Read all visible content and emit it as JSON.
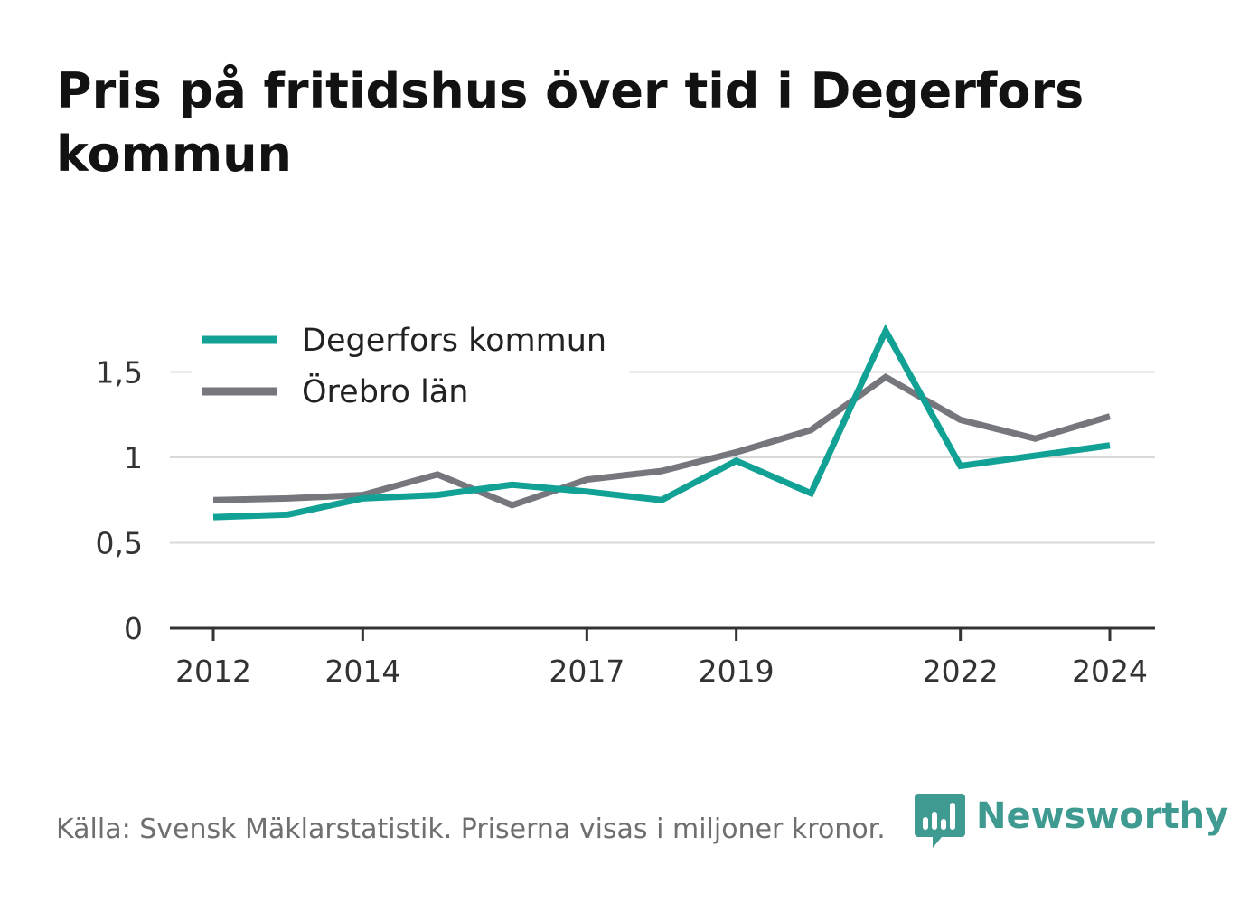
{
  "title": "Pris på fritidshus över tid i Degerfors kommun",
  "source": "Källa: Svensk Mäklarstatistik. Priserna visas i miljoner kronor.",
  "brand": "Newsworthy",
  "colors": {
    "degerfors": "#12a195",
    "orebro": "#76767d",
    "brand": "#3f9a91"
  },
  "chart_data": {
    "type": "line",
    "title": "Pris på fritidshus över tid i Degerfors kommun",
    "xlabel": "",
    "ylabel": "",
    "x": [
      2012,
      2013,
      2014,
      2015,
      2016,
      2017,
      2018,
      2019,
      2020,
      2021,
      2022,
      2023,
      2024
    ],
    "x_ticks": [
      "2012",
      "2014",
      "2017",
      "2019",
      "2022",
      "2024"
    ],
    "x_tick_values": [
      2012,
      2014,
      2017,
      2019,
      2022,
      2024
    ],
    "y_ticks": [
      "0",
      "0,5",
      "1",
      "1,5"
    ],
    "y_tick_values": [
      0,
      0.5,
      1,
      1.5
    ],
    "ylim": [
      0,
      1.75
    ],
    "grid": true,
    "legend_position": "top-left",
    "series": [
      {
        "name": "Degerfors kommun",
        "color": "#12a195",
        "values": [
          0.65,
          0.665,
          0.76,
          0.78,
          0.84,
          0.8,
          0.75,
          0.98,
          0.79,
          1.74,
          0.95,
          1.01,
          1.07
        ]
      },
      {
        "name": "Örebro län",
        "color": "#76767d",
        "values": [
          0.75,
          0.76,
          0.78,
          0.9,
          0.72,
          0.87,
          0.92,
          1.03,
          1.16,
          1.47,
          1.22,
          1.11,
          1.24
        ]
      }
    ]
  }
}
